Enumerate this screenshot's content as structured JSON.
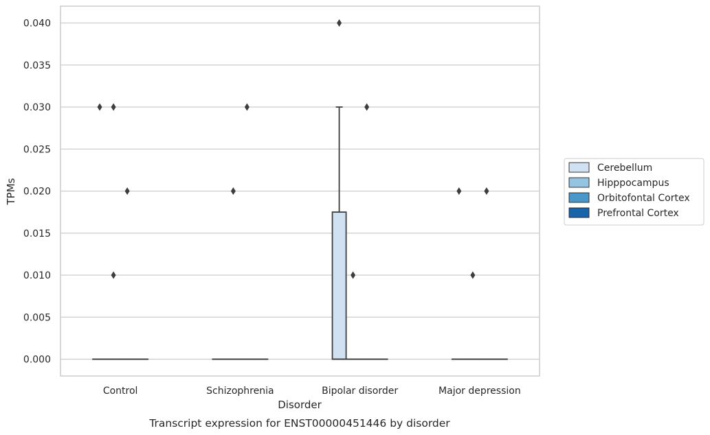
{
  "chart_data": {
    "type": "box",
    "xlabel": "Disorder",
    "ylabel": "TPMs",
    "caption": "Transcript expression for ENST00000451446 by disorder",
    "categories": [
      "Control",
      "Schizophrenia",
      "Bipolar disorder",
      "Major depression"
    ],
    "yticks": [
      "0.000",
      "0.005",
      "0.010",
      "0.015",
      "0.020",
      "0.025",
      "0.030",
      "0.035",
      "0.040"
    ],
    "ylim": [
      -0.002,
      0.042
    ],
    "grid": "horizontal",
    "legend_position": "right",
    "series": [
      {
        "name": "Cerebellum",
        "color": "#d0e1f2",
        "boxes": [
          {
            "q1": 0,
            "median": 0,
            "q3": 0,
            "whislo": 0,
            "whishi": 0,
            "fliers": [
              0.03
            ]
          },
          {
            "q1": 0,
            "median": 0,
            "q3": 0,
            "whislo": 0,
            "whishi": 0,
            "fliers": []
          },
          {
            "q1": 0,
            "median": 0,
            "q3": 0.0175,
            "whislo": 0,
            "whishi": 0.03,
            "fliers": [
              0.04
            ]
          },
          {
            "q1": 0,
            "median": 0,
            "q3": 0,
            "whislo": 0,
            "whishi": 0,
            "fliers": [
              0.02
            ]
          }
        ]
      },
      {
        "name": "Hipppocampus",
        "color": "#94c4df",
        "boxes": [
          {
            "q1": 0,
            "median": 0,
            "q3": 0,
            "whislo": 0,
            "whishi": 0,
            "fliers": [
              0.03,
              0.01
            ]
          },
          {
            "q1": 0,
            "median": 0,
            "q3": 0,
            "whislo": 0,
            "whishi": 0,
            "fliers": [
              0.02
            ]
          },
          {
            "q1": 0,
            "median": 0,
            "q3": 0,
            "whislo": 0,
            "whishi": 0,
            "fliers": [
              0.01
            ]
          },
          {
            "q1": 0,
            "median": 0,
            "q3": 0,
            "whislo": 0,
            "whishi": 0,
            "fliers": [
              0.01
            ]
          }
        ]
      },
      {
        "name": "Orbitofontal Cortex",
        "color": "#4a98c9",
        "boxes": [
          {
            "q1": 0,
            "median": 0,
            "q3": 0,
            "whislo": 0,
            "whishi": 0,
            "fliers": [
              0.02
            ]
          },
          {
            "q1": 0,
            "median": 0,
            "q3": 0,
            "whislo": 0,
            "whishi": 0,
            "fliers": [
              0.03
            ]
          },
          {
            "q1": 0,
            "median": 0,
            "q3": 0,
            "whislo": 0,
            "whishi": 0,
            "fliers": [
              0.03
            ]
          },
          {
            "q1": 0,
            "median": 0,
            "q3": 0,
            "whislo": 0,
            "whishi": 0,
            "fliers": [
              0.02
            ]
          }
        ]
      },
      {
        "name": "Prefrontal Cortex",
        "color": "#1764ab",
        "boxes": [
          {
            "q1": 0,
            "median": 0,
            "q3": 0,
            "whislo": 0,
            "whishi": 0,
            "fliers": []
          },
          {
            "q1": 0,
            "median": 0,
            "q3": 0,
            "whislo": 0,
            "whishi": 0,
            "fliers": []
          },
          {
            "q1": 0,
            "median": 0,
            "q3": 0,
            "whislo": 0,
            "whishi": 0,
            "fliers": []
          },
          {
            "q1": 0,
            "median": 0,
            "q3": 0,
            "whislo": 0,
            "whishi": 0,
            "fliers": []
          }
        ]
      }
    ]
  }
}
